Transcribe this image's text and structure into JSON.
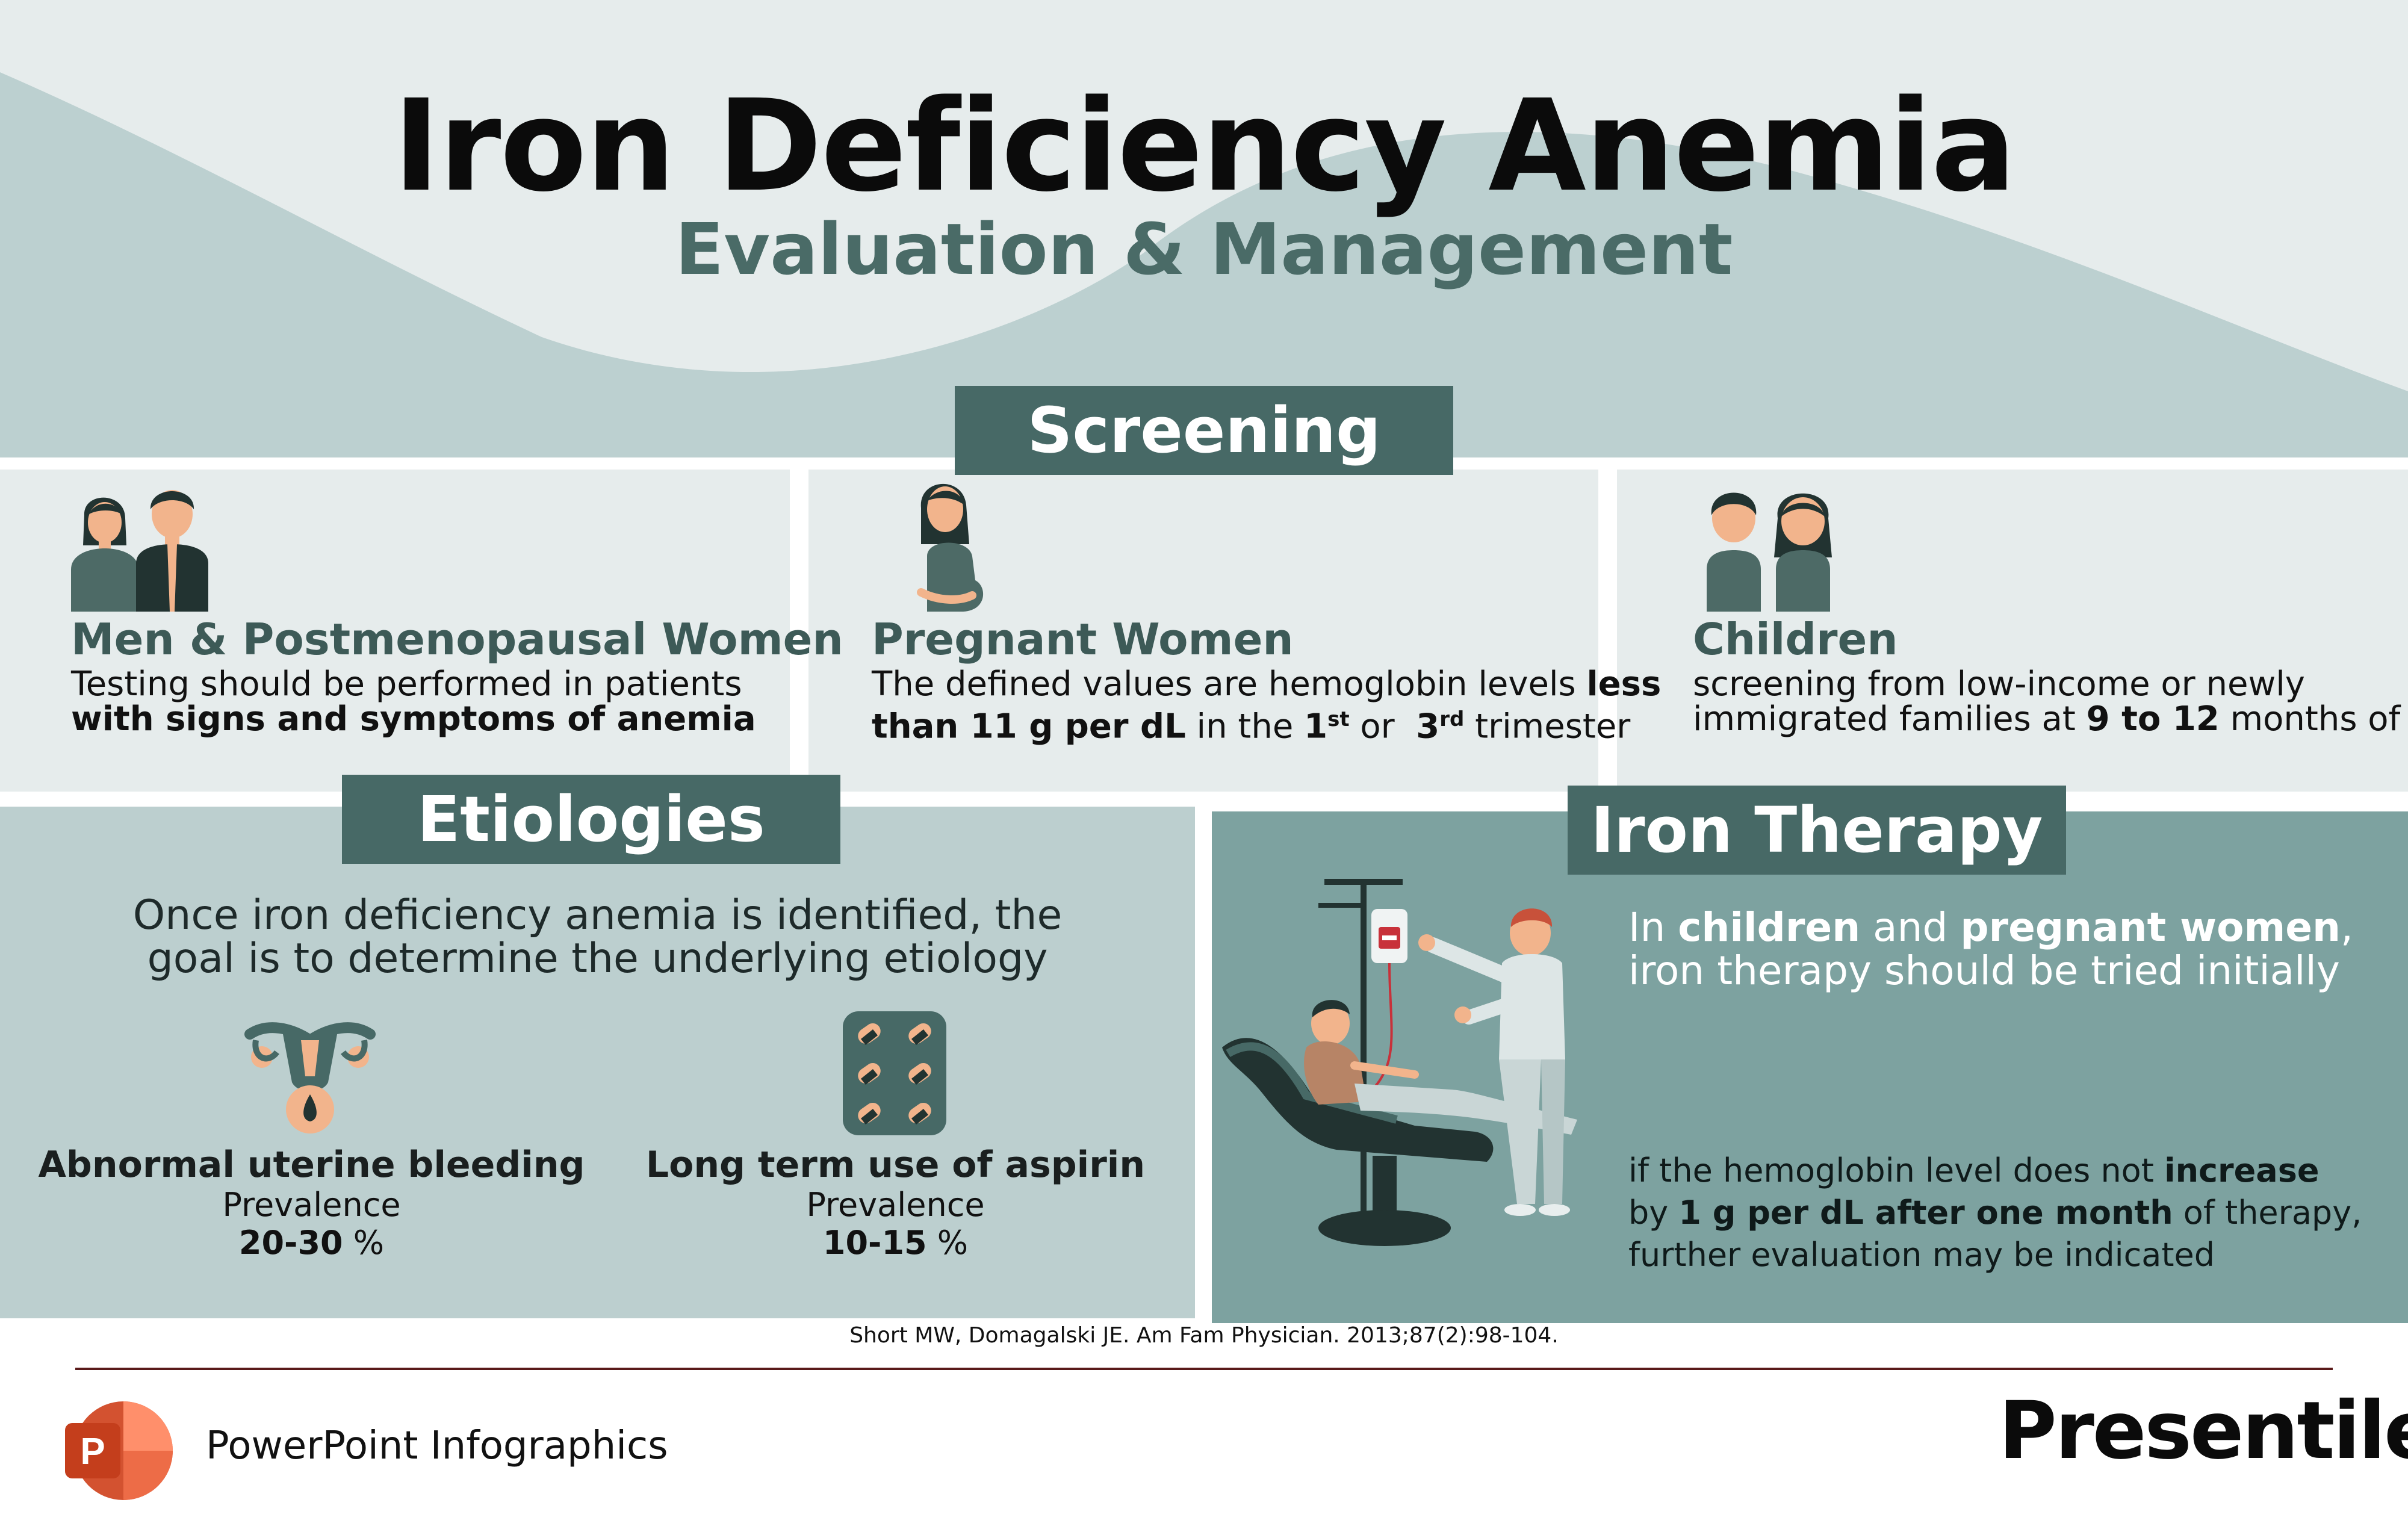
{
  "header": {
    "title": "Iron Deficiency Anemia",
    "subtitle": "Evaluation & Management"
  },
  "screening": {
    "tab_label": "Screening",
    "cards": [
      {
        "title": "Men & Postmenopausal Women",
        "line1": "Testing should be performed in patients",
        "line2_bold": "with signs and symptoms of anemia"
      },
      {
        "title": "Pregnant Women",
        "line1_pre": "The defined values are hemoglobin levels ",
        "line1_bold": "less",
        "line2_bold": "than 11 g per dL",
        "line2_mid": " in the ",
        "first": "1",
        "first_sup": "st",
        "or": " or  ",
        "third": "3",
        "third_sup": "rd",
        "line2_end": " trimester"
      },
      {
        "title": "Children",
        "line1": "screening from low-income or newly",
        "line2_pre": "immigrated families at ",
        "line2_bold": "9 to 12",
        "line2_end": " months of age"
      }
    ]
  },
  "etiologies": {
    "tab_label": "Etiologies",
    "intro_line1": "Once iron deficiency anemia is identified, the",
    "intro_line2": "goal is to determine the underlying etiology",
    "items": [
      {
        "name": "Abnormal uterine bleeding",
        "prevalence_label": "Prevalence",
        "value": "20-30",
        "unit": " %"
      },
      {
        "name": "Long term use of aspirin",
        "prevalence_label": "Prevalence",
        "value": "10-15",
        "unit": " %"
      }
    ]
  },
  "iron_therapy": {
    "tab_label": "Iron Therapy",
    "l1_pre": "In ",
    "l1_b1": "children",
    "l1_mid": " and ",
    "l1_b2": "pregnant women",
    "l1_end": ",",
    "line2": "iron therapy should be tried initially",
    "note_l1_pre": "if the hemoglobin level does not ",
    "note_l1_bold": "increase",
    "note_l2_pre": "by ",
    "note_l2_bold": "1 g per dL after one month",
    "note_l2_end": " of therapy,",
    "note_l3": "further evaluation may be indicated"
  },
  "citation": "Short MW, Domagalski JE. Am Fam Physician. 2013;87(2):98-104.",
  "footer": {
    "label": "PowerPoint Infographics",
    "app_letter": "P",
    "brand": "Presentile"
  },
  "colors": {
    "dark_teal": "#476966",
    "panel_light": "#e6ecec",
    "etiology_bg": "#bccfcf",
    "iron_bg": "#7da2a0",
    "skin": "#f2b48c",
    "footer_rule": "#5a1a1a"
  },
  "icons": [
    "couple-icon",
    "pregnant-woman-icon",
    "children-icon",
    "uterus-icon",
    "pill-blister-icon",
    "iv-transfusion-illustration",
    "powerpoint-logo-icon"
  ]
}
